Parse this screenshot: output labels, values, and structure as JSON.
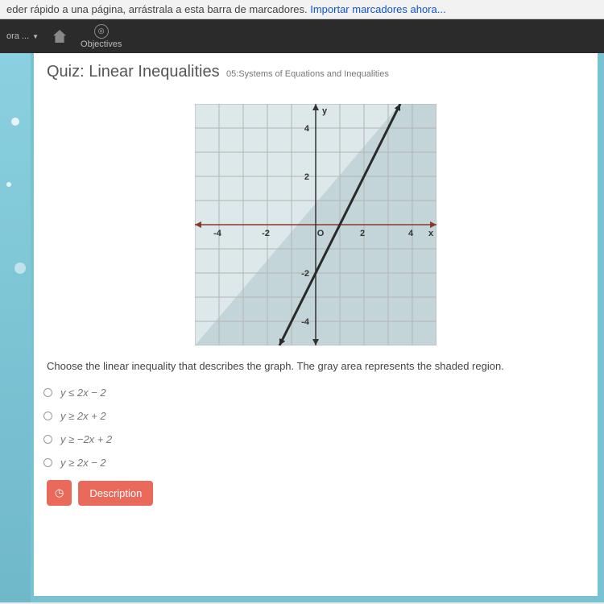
{
  "bookmarkBar": {
    "text_prefix": "eder rápido a una página, arrástrala a esta barra de marcadores. ",
    "link": "Importar marcadores ahora..."
  },
  "darkNav": {
    "left_text": "ora ...",
    "objectives_label": "Objectives"
  },
  "quiz": {
    "title": "Quiz: Linear Inequalities",
    "subtitle": "05:Systems of Equations and Inequalities",
    "question": "Choose the linear inequality that describes the graph. The gray area represents the shaded region.",
    "options": [
      "y ≤ 2x − 2",
      "y ≥ 2x + 2",
      "y ≥ −2x + 2",
      "y ≥ 2x − 2"
    ],
    "description_btn": "Description"
  },
  "chart": {
    "type": "linear-inequality-graph",
    "xlim": [
      -5,
      5
    ],
    "ylim": [
      -5,
      5
    ],
    "tick_step": 1,
    "x_ticks_labeled": [
      -4,
      -2,
      0,
      2,
      4
    ],
    "y_ticks_labeled": [
      -4,
      -2,
      2,
      4
    ],
    "x_label": "x",
    "y_label": "y",
    "line": {
      "slope": 2,
      "intercept": -2,
      "solid": true,
      "color": "#2a2a2a",
      "width": 3
    },
    "shade_side": "below",
    "shade_color": "#c3d5d8",
    "grid_color": "#b5b5b5",
    "bg_color": "#dce8ea",
    "axis_color": "#333333",
    "axis_line_color_highlight_x": "#8a3a2a",
    "label_fontsize": 11,
    "arrowheads": true
  },
  "colors": {
    "accent": "#e96a5a",
    "nav_bg": "#2b2b2b",
    "side_bg": "#77c3d4"
  }
}
